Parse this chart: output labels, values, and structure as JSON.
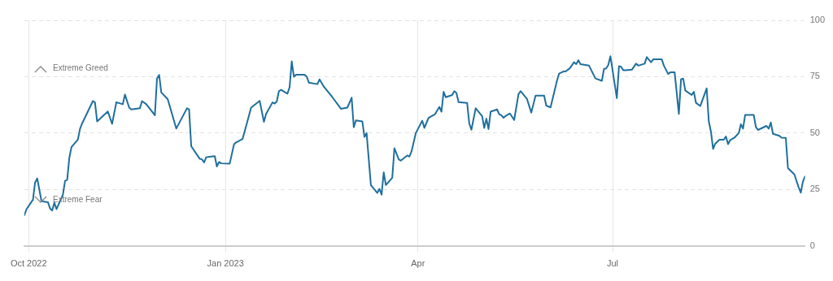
{
  "chart_data": {
    "type": "line",
    "x": [
      "2022-09-29",
      "2022-09-30",
      "2022-10-03",
      "2022-10-04",
      "2022-10-05",
      "2022-10-07",
      "2022-10-10",
      "2022-10-11",
      "2022-10-12",
      "2022-10-13",
      "2022-10-14",
      "2022-10-17",
      "2022-10-18",
      "2022-10-19",
      "2022-10-20",
      "2022-10-21",
      "2022-10-24",
      "2022-10-25",
      "2022-10-26",
      "2022-10-31",
      "2022-11-01",
      "2022-11-02",
      "2022-11-07",
      "2022-11-09",
      "2022-11-11",
      "2022-11-14",
      "2022-11-15",
      "2022-11-17",
      "2022-11-18",
      "2022-11-22",
      "2022-11-23",
      "2022-11-25",
      "2022-11-29",
      "2022-11-30",
      "2022-12-01",
      "2022-12-02",
      "2022-12-05",
      "2022-12-09",
      "2022-12-14",
      "2022-12-15",
      "2022-12-16",
      "2022-12-20",
      "2022-12-21",
      "2022-12-22",
      "2022-12-23",
      "2022-12-27",
      "2022-12-28",
      "2022-12-29",
      "2022-12-30",
      "2023-01-03",
      "2023-01-05",
      "2023-01-06",
      "2023-01-09",
      "2023-01-11",
      "2023-01-13",
      "2023-01-17",
      "2023-01-19",
      "2023-01-20",
      "2023-01-23",
      "2023-01-24",
      "2023-01-25",
      "2023-01-26",
      "2023-01-27",
      "2023-01-30",
      "2023-01-31",
      "2023-02-01",
      "2023-02-02",
      "2023-02-03",
      "2023-02-07",
      "2023-02-08",
      "2023-02-09",
      "2023-02-13",
      "2023-02-14",
      "2023-02-16",
      "2023-02-20",
      "2023-02-24",
      "2023-02-27",
      "2023-03-01",
      "2023-03-02",
      "2023-03-03",
      "2023-03-06",
      "2023-03-07",
      "2023-03-08",
      "2023-03-10",
      "2023-03-13",
      "2023-03-14",
      "2023-03-15",
      "2023-03-16",
      "2023-03-17",
      "2023-03-20",
      "2023-03-21",
      "2023-03-23",
      "2023-03-24",
      "2023-03-27",
      "2023-03-28",
      "2023-03-29",
      "2023-03-31",
      "2023-04-03",
      "2023-04-04",
      "2023-04-06",
      "2023-04-09",
      "2023-04-11",
      "2023-04-12",
      "2023-04-13",
      "2023-04-14",
      "2023-04-17",
      "2023-04-18",
      "2023-04-19",
      "2023-04-20",
      "2023-04-24",
      "2023-04-25",
      "2023-04-26",
      "2023-04-28",
      "2023-05-01",
      "2023-05-02",
      "2023-05-03",
      "2023-05-04",
      "2023-05-05",
      "2023-05-08",
      "2023-05-09",
      "2023-05-10",
      "2023-05-11",
      "2023-05-12",
      "2023-05-14",
      "2023-05-16",
      "2023-05-18",
      "2023-05-19",
      "2023-05-22",
      "2023-05-24",
      "2023-05-26",
      "2023-05-30",
      "2023-05-31",
      "2023-06-02",
      "2023-06-05",
      "2023-06-06",
      "2023-06-08",
      "2023-06-09",
      "2023-06-11",
      "2023-06-13",
      "2023-06-14",
      "2023-06-15",
      "2023-06-16",
      "2023-06-20",
      "2023-06-23",
      "2023-06-26",
      "2023-06-27",
      "2023-06-28",
      "2023-06-29",
      "2023-06-30",
      "2023-07-03",
      "2023-07-04",
      "2023-07-05",
      "2023-07-06",
      "2023-07-07",
      "2023-07-10",
      "2023-07-12",
      "2023-07-13",
      "2023-07-16",
      "2023-07-17",
      "2023-07-19",
      "2023-07-20",
      "2023-07-24",
      "2023-07-25",
      "2023-07-27",
      "2023-07-28",
      "2023-07-30",
      "2023-08-01",
      "2023-08-02",
      "2023-08-03",
      "2023-08-04",
      "2023-08-07",
      "2023-08-08",
      "2023-08-09",
      "2023-08-11",
      "2023-08-14",
      "2023-08-15",
      "2023-08-16",
      "2023-08-17",
      "2023-08-18",
      "2023-08-20",
      "2023-08-22",
      "2023-08-23",
      "2023-08-24",
      "2023-08-25",
      "2023-08-27",
      "2023-08-29",
      "2023-08-30",
      "2023-08-31",
      "2023-09-01",
      "2023-09-05",
      "2023-09-06",
      "2023-09-07",
      "2023-09-11",
      "2023-09-12",
      "2023-09-13",
      "2023-09-14",
      "2023-09-17",
      "2023-09-18",
      "2023-09-20",
      "2023-09-21",
      "2023-09-24",
      "2023-09-26",
      "2023-09-27",
      "2023-09-28",
      "2023-09-29"
    ],
    "series": [
      {
        "color": "#1f6f9d",
        "values": [
          13.6,
          16.3,
          20.5,
          28.1,
          29.9,
          19.8,
          19.4,
          16.6,
          15.7,
          19.2,
          16.3,
          22.7,
          28.8,
          29.3,
          39,
          43.8,
          47.1,
          51.9,
          54.3,
          64.2,
          63.6,
          55.2,
          59.6,
          54.1,
          63.7,
          62.8,
          67.1,
          61.3,
          60.5,
          61,
          64.2,
          62.8,
          57.9,
          74.2,
          75.8,
          68,
          65.1,
          52,
          61,
          60.5,
          44.2,
          38.6,
          38.4,
          37,
          39.3,
          39.8,
          35.2,
          37.2,
          36.6,
          36.5,
          45,
          45.9,
          47.4,
          54.3,
          61.3,
          64.3,
          55,
          58.5,
          63.6,
          63.1,
          64,
          68.6,
          69.2,
          67.5,
          70.4,
          81.8,
          75,
          75.9,
          75.9,
          75,
          72.4,
          71.7,
          73.8,
          70.6,
          65.9,
          60.8,
          61.3,
          65.7,
          52.6,
          55.6,
          55.2,
          48.3,
          50,
          27,
          23.5,
          25.3,
          22.7,
          32.6,
          27,
          30.2,
          43.3,
          38.4,
          37.8,
          40.1,
          39.6,
          41.9,
          50,
          55.5,
          52.3,
          56.8,
          58.4,
          61.6,
          59.5,
          68.3,
          65.9,
          66.9,
          68.6,
          67.8,
          63.7,
          63.4,
          54.3,
          51.5,
          61,
          57.6,
          52.3,
          56.4,
          51.8,
          59.5,
          60.5,
          58.4,
          57.9,
          56.8,
          57.6,
          58.7,
          55.8,
          67.2,
          68.6,
          65.1,
          59.1,
          66.6,
          66.6,
          62.2,
          61.4,
          73.2,
          76.4,
          77.3,
          77.3,
          78.7,
          81.4,
          80.6,
          82.3,
          80.6,
          79.9,
          74.2,
          73.2,
          78.5,
          78.7,
          80.2,
          84.1,
          65.5,
          79.7,
          79.4,
          77.9,
          77.9,
          78.1,
          80.8,
          79.9,
          80.8,
          83.7,
          81.4,
          82.7,
          82.7,
          79.9,
          76.2,
          77,
          77,
          58.5,
          73.8,
          74.2,
          68.9,
          66.9,
          68.3,
          63.4,
          62,
          69.8,
          55.2,
          50.6,
          43,
          45.3,
          47.1,
          47.1,
          48.5,
          45.1,
          46.9,
          48,
          50,
          53.9,
          52,
          58.1,
          58.1,
          52.7,
          51.4,
          53.2,
          52,
          54.7,
          49.7,
          48.8,
          48,
          47.9,
          34.5,
          31.7,
          26,
          23.6,
          28.5,
          30.8
        ]
      }
    ],
    "xlim": [
      "2022-09-29",
      "2023-09-29"
    ],
    "xticks": [
      {
        "value": "2022-10-01",
        "label": "Oct 2022"
      },
      {
        "value": "2023-01-01",
        "label": "Jan 2023"
      },
      {
        "value": "2023-04-01",
        "label": "Apr"
      },
      {
        "value": "2023-07-01",
        "label": "Jul"
      }
    ],
    "ylim": [
      0,
      100
    ],
    "yticks": [
      0,
      25,
      50,
      75,
      100
    ],
    "grid": true,
    "marker": "none",
    "annotations": [
      "Extreme Greed",
      "Extreme Fear"
    ]
  }
}
